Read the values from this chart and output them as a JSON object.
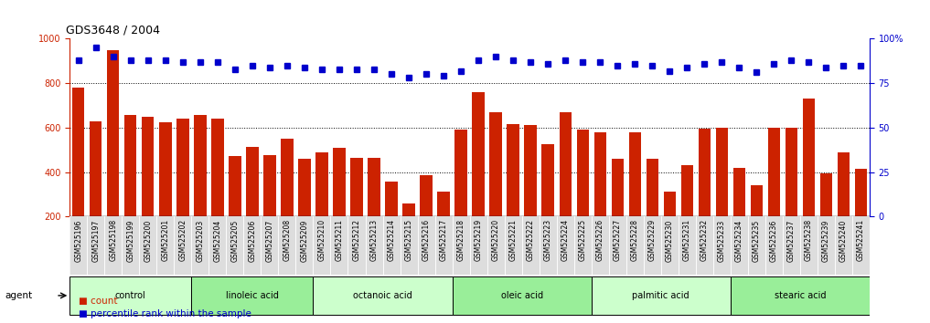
{
  "title": "GDS3648 / 2004",
  "categories": [
    "GSM525196",
    "GSM525197",
    "GSM525198",
    "GSM525199",
    "GSM525200",
    "GSM525201",
    "GSM525202",
    "GSM525203",
    "GSM525204",
    "GSM525205",
    "GSM525206",
    "GSM525207",
    "GSM525208",
    "GSM525209",
    "GSM525210",
    "GSM525211",
    "GSM525212",
    "GSM525213",
    "GSM525214",
    "GSM525215",
    "GSM525216",
    "GSM525217",
    "GSM525218",
    "GSM525219",
    "GSM525220",
    "GSM525221",
    "GSM525222",
    "GSM525223",
    "GSM525224",
    "GSM525225",
    "GSM525226",
    "GSM525227",
    "GSM525228",
    "GSM525229",
    "GSM525230",
    "GSM525231",
    "GSM525232",
    "GSM525233",
    "GSM525234",
    "GSM525235",
    "GSM525236",
    "GSM525237",
    "GSM525238",
    "GSM525239",
    "GSM525240",
    "GSM525241"
  ],
  "bar_values": [
    780,
    630,
    950,
    655,
    650,
    625,
    640,
    655,
    640,
    470,
    515,
    475,
    550,
    460,
    490,
    510,
    465,
    465,
    355,
    260,
    385,
    310,
    590,
    760,
    670,
    615,
    610,
    525,
    670,
    590,
    580,
    460,
    580,
    460,
    310,
    430,
    595,
    600,
    420,
    340,
    600,
    600,
    730,
    395,
    490,
    415
  ],
  "pct_values": [
    88,
    95,
    90,
    88,
    88,
    88,
    87,
    87,
    87,
    83,
    85,
    84,
    85,
    84,
    83,
    83,
    83,
    83,
    80,
    78,
    80,
    79,
    82,
    88,
    90,
    88,
    87,
    86,
    88,
    87,
    87,
    85,
    86,
    85,
    82,
    84,
    86,
    87,
    84,
    81,
    86,
    88,
    87,
    84,
    85,
    85
  ],
  "groups": [
    {
      "label": "control",
      "start": 0,
      "end": 7,
      "color": "#ccffcc"
    },
    {
      "label": "linoleic acid",
      "start": 7,
      "end": 14,
      "color": "#99ee99"
    },
    {
      "label": "octanoic acid",
      "start": 14,
      "end": 22,
      "color": "#ccffcc"
    },
    {
      "label": "oleic acid",
      "start": 22,
      "end": 30,
      "color": "#99ee99"
    },
    {
      "label": "palmitic acid",
      "start": 30,
      "end": 38,
      "color": "#ccffcc"
    },
    {
      "label": "stearic acid",
      "start": 38,
      "end": 46,
      "color": "#99ee99"
    }
  ],
  "bar_color": "#cc2200",
  "pct_color": "#0000cc",
  "ylim_left": [
    200,
    1000
  ],
  "ylim_right": [
    0,
    100
  ],
  "yticks_left": [
    200,
    400,
    600,
    800,
    1000
  ],
  "yticks_right": [
    0,
    25,
    50,
    75,
    100
  ],
  "grid_values": [
    400,
    600,
    800
  ],
  "pct_marker_size": 4,
  "xtick_bg_color": "#dddddd"
}
